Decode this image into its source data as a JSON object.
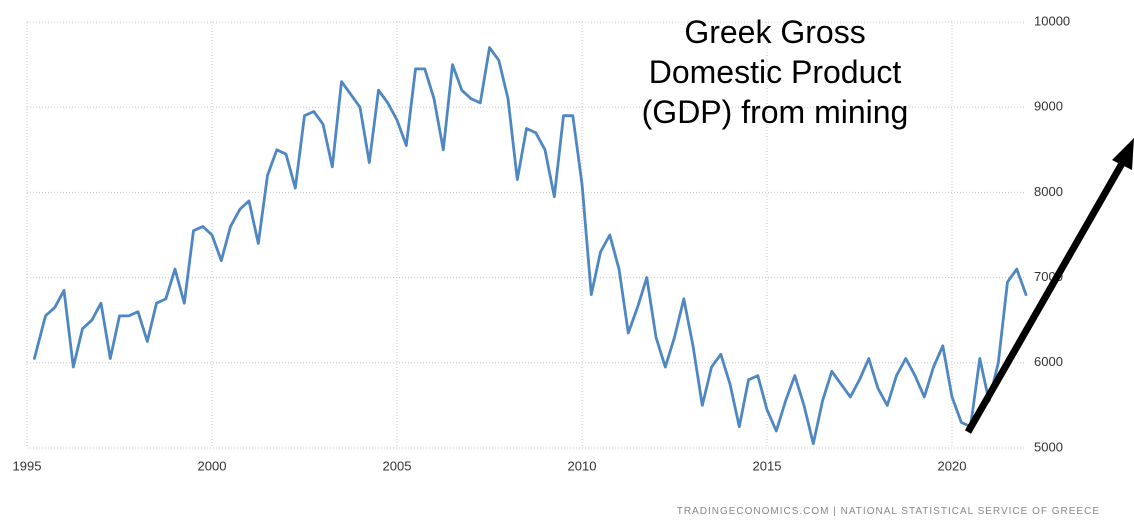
{
  "chart_data": {
    "type": "line",
    "title": "Greek Gross Domestic Product (GDP) from mining",
    "source": "TRADINGECONOMICS.COM | NATIONAL STATISTICAL SERVICE OF GREECE",
    "x": [
      1995.2,
      1995.5,
      1995.75,
      1996.0,
      1996.25,
      1996.5,
      1996.75,
      1997.0,
      1997.25,
      1997.5,
      1997.75,
      1998.0,
      1998.25,
      1998.5,
      1998.75,
      1999.0,
      1999.25,
      1999.5,
      1999.75,
      2000.0,
      2000.25,
      2000.5,
      2000.75,
      2001.0,
      2001.25,
      2001.5,
      2001.75,
      2002.0,
      2002.25,
      2002.5,
      2002.75,
      2003.0,
      2003.25,
      2003.5,
      2003.75,
      2004.0,
      2004.25,
      2004.5,
      2004.75,
      2005.0,
      2005.25,
      2005.5,
      2005.75,
      2006.0,
      2006.25,
      2006.5,
      2006.75,
      2007.0,
      2007.25,
      2007.5,
      2007.75,
      2008.0,
      2008.25,
      2008.5,
      2008.75,
      2009.0,
      2009.25,
      2009.5,
      2009.75,
      2010.0,
      2010.25,
      2010.5,
      2010.75,
      2011.0,
      2011.25,
      2011.5,
      2011.75,
      2012.0,
      2012.25,
      2012.5,
      2012.75,
      2013.0,
      2013.25,
      2013.5,
      2013.75,
      2014.0,
      2014.25,
      2014.5,
      2014.75,
      2015.0,
      2015.25,
      2015.5,
      2015.75,
      2016.0,
      2016.25,
      2016.5,
      2016.75,
      2017.0,
      2017.25,
      2017.5,
      2017.75,
      2018.0,
      2018.25,
      2018.5,
      2018.75,
      2019.0,
      2019.25,
      2019.5,
      2019.75,
      2020.0,
      2020.25,
      2020.5,
      2020.75,
      2021.0,
      2021.25,
      2021.5,
      2021.75,
      2022.0
    ],
    "series": [
      {
        "name": "GDP from mining",
        "color": "#4f87c2",
        "values": [
          6050,
          6550,
          6650,
          6850,
          5950,
          6400,
          6500,
          6700,
          6050,
          6550,
          6550,
          6600,
          6250,
          6700,
          6750,
          7100,
          6700,
          7550,
          7600,
          7500,
          7200,
          7600,
          7800,
          7900,
          7400,
          8200,
          8500,
          8450,
          8050,
          8900,
          8950,
          8800,
          8300,
          9300,
          9150,
          9000,
          8350,
          9200,
          9050,
          8850,
          8550,
          9450,
          9450,
          9100,
          8500,
          9500,
          9200,
          9100,
          9050,
          9700,
          9550,
          9100,
          8150,
          8750,
          8700,
          8500,
          7950,
          8900,
          8900,
          8100,
          6800,
          7300,
          7500,
          7100,
          6350,
          6650,
          7000,
          6300,
          5950,
          6300,
          6750,
          6200,
          5500,
          5950,
          6100,
          5750,
          5250,
          5800,
          5850,
          5450,
          5200,
          5550,
          5850,
          5500,
          5050,
          5550,
          5900,
          5750,
          5600,
          5800,
          6050,
          5700,
          5500,
          5850,
          6050,
          5850,
          5600,
          5950,
          6200,
          5600,
          5300,
          5250,
          6050,
          5550,
          6000,
          6950,
          7100,
          6800
        ]
      }
    ],
    "xlim": [
      1995,
      2022
    ],
    "xticks": [
      1995,
      2000,
      2005,
      2010,
      2015,
      2020
    ],
    "ylim": [
      5000,
      10000
    ],
    "yticks": [
      5000,
      6000,
      7000,
      8000,
      9000,
      10000
    ],
    "grid": true
  }
}
